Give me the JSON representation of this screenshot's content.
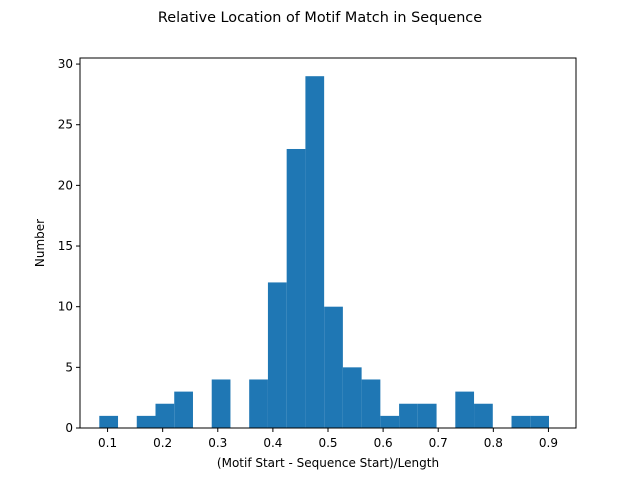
{
  "chart_data": {
    "type": "bar",
    "title": "Relative Location of Motif Match in Sequence",
    "xlabel": "(Motif Start - Sequence Start)/Length",
    "ylabel": "Number",
    "xlim": [
      0.05,
      0.95
    ],
    "ylim": [
      0,
      30.5
    ],
    "x_ticks": [
      0.1,
      0.2,
      0.3,
      0.4,
      0.5,
      0.6,
      0.7,
      0.8,
      0.9
    ],
    "x_tick_labels": [
      "0.1",
      "0.2",
      "0.3",
      "0.4",
      "0.5",
      "0.6",
      "0.7",
      "0.8",
      "0.9"
    ],
    "y_ticks": [
      0,
      5,
      10,
      15,
      20,
      25,
      30
    ],
    "y_tick_labels": [
      "0",
      "5",
      "10",
      "15",
      "20",
      "25",
      "30"
    ],
    "bin_edges": [
      0.085,
      0.119,
      0.153,
      0.187,
      0.221,
      0.255,
      0.289,
      0.323,
      0.357,
      0.391,
      0.425,
      0.459,
      0.493,
      0.527,
      0.561,
      0.595,
      0.629,
      0.663,
      0.697,
      0.731,
      0.765,
      0.799,
      0.833,
      0.867,
      0.901
    ],
    "counts": [
      1,
      0,
      1,
      2,
      3,
      0,
      4,
      0,
      4,
      12,
      23,
      29,
      10,
      5,
      4,
      1,
      2,
      2,
      0,
      3,
      2,
      0,
      1,
      1
    ],
    "grid": false,
    "bar_color": "#1f77b4"
  }
}
